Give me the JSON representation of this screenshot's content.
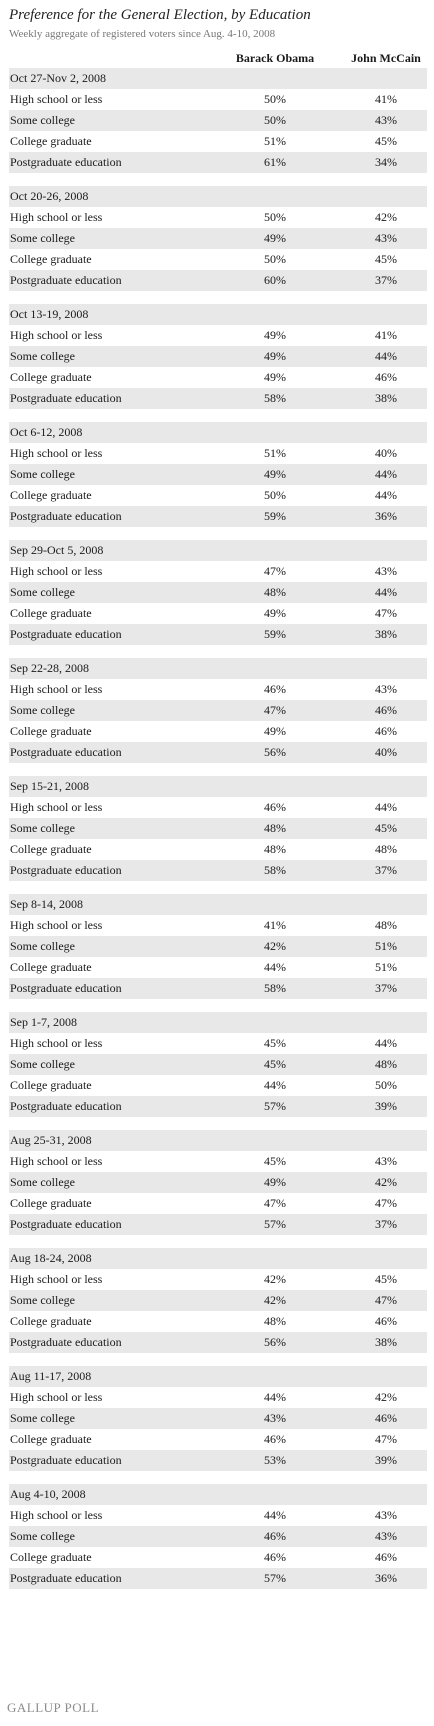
{
  "title": "Preference for the General Election, by Education",
  "subtitle": "Weekly aggregate of registered voters since Aug. 4-10, 2008",
  "logo": "GALLUP POLL",
  "chart_data": {
    "type": "table",
    "columns": [
      "Barack Obama",
      "John McCain"
    ],
    "groups": [
      {
        "period": "Oct 27-Nov 2, 2008",
        "rows": [
          {
            "label": "High school or less",
            "obama": "50%",
            "mccain": "41%"
          },
          {
            "label": "Some college",
            "obama": "50%",
            "mccain": "43%"
          },
          {
            "label": "College graduate",
            "obama": "51%",
            "mccain": "45%"
          },
          {
            "label": "Postgraduate education",
            "obama": "61%",
            "mccain": "34%"
          }
        ]
      },
      {
        "period": "Oct 20-26, 2008",
        "rows": [
          {
            "label": "High school or less",
            "obama": "50%",
            "mccain": "42%"
          },
          {
            "label": "Some college",
            "obama": "49%",
            "mccain": "43%"
          },
          {
            "label": "College graduate",
            "obama": "50%",
            "mccain": "45%"
          },
          {
            "label": "Postgraduate education",
            "obama": "60%",
            "mccain": "37%"
          }
        ]
      },
      {
        "period": "Oct 13-19, 2008",
        "rows": [
          {
            "label": "High school or less",
            "obama": "49%",
            "mccain": "41%"
          },
          {
            "label": "Some college",
            "obama": "49%",
            "mccain": "44%"
          },
          {
            "label": "College graduate",
            "obama": "49%",
            "mccain": "46%"
          },
          {
            "label": "Postgraduate education",
            "obama": "58%",
            "mccain": "38%"
          }
        ]
      },
      {
        "period": "Oct 6-12, 2008",
        "rows": [
          {
            "label": "High school or less",
            "obama": "51%",
            "mccain": "40%"
          },
          {
            "label": "Some college",
            "obama": "49%",
            "mccain": "44%"
          },
          {
            "label": "College graduate",
            "obama": "50%",
            "mccain": "44%"
          },
          {
            "label": "Postgraduate education",
            "obama": "59%",
            "mccain": "36%"
          }
        ]
      },
      {
        "period": "Sep 29-Oct 5, 2008",
        "rows": [
          {
            "label": "High school or less",
            "obama": "47%",
            "mccain": "43%"
          },
          {
            "label": "Some college",
            "obama": "48%",
            "mccain": "44%"
          },
          {
            "label": "College graduate",
            "obama": "49%",
            "mccain": "47%"
          },
          {
            "label": "Postgraduate education",
            "obama": "59%",
            "mccain": "38%"
          }
        ]
      },
      {
        "period": "Sep 22-28, 2008",
        "rows": [
          {
            "label": "High school or less",
            "obama": "46%",
            "mccain": "43%"
          },
          {
            "label": "Some college",
            "obama": "47%",
            "mccain": "46%"
          },
          {
            "label": "College graduate",
            "obama": "49%",
            "mccain": "46%"
          },
          {
            "label": "Postgraduate education",
            "obama": "56%",
            "mccain": "40%"
          }
        ]
      },
      {
        "period": "Sep 15-21, 2008",
        "rows": [
          {
            "label": "High school or less",
            "obama": "46%",
            "mccain": "44%"
          },
          {
            "label": "Some college",
            "obama": "48%",
            "mccain": "45%"
          },
          {
            "label": "College graduate",
            "obama": "48%",
            "mccain": "48%"
          },
          {
            "label": "Postgraduate education",
            "obama": "58%",
            "mccain": "37%"
          }
        ]
      },
      {
        "period": "Sep 8-14, 2008",
        "rows": [
          {
            "label": "High school or less",
            "obama": "41%",
            "mccain": "48%"
          },
          {
            "label": "Some college",
            "obama": "42%",
            "mccain": "51%"
          },
          {
            "label": "College graduate",
            "obama": "44%",
            "mccain": "51%"
          },
          {
            "label": "Postgraduate education",
            "obama": "58%",
            "mccain": "37%"
          }
        ]
      },
      {
        "period": "Sep 1-7, 2008",
        "rows": [
          {
            "label": "High school or less",
            "obama": "45%",
            "mccain": "44%"
          },
          {
            "label": "Some college",
            "obama": "45%",
            "mccain": "48%"
          },
          {
            "label": "College graduate",
            "obama": "44%",
            "mccain": "50%"
          },
          {
            "label": "Postgraduate education",
            "obama": "57%",
            "mccain": "39%"
          }
        ]
      },
      {
        "period": "Aug 25-31, 2008",
        "rows": [
          {
            "label": "High school or less",
            "obama": "45%",
            "mccain": "43%"
          },
          {
            "label": "Some college",
            "obama": "49%",
            "mccain": "42%"
          },
          {
            "label": "College graduate",
            "obama": "47%",
            "mccain": "47%"
          },
          {
            "label": "Postgraduate education",
            "obama": "57%",
            "mccain": "37%"
          }
        ]
      },
      {
        "period": "Aug 18-24, 2008",
        "rows": [
          {
            "label": "High school or less",
            "obama": "42%",
            "mccain": "45%"
          },
          {
            "label": "Some college",
            "obama": "42%",
            "mccain": "47%"
          },
          {
            "label": "College graduate",
            "obama": "48%",
            "mccain": "46%"
          },
          {
            "label": "Postgraduate education",
            "obama": "56%",
            "mccain": "38%"
          }
        ]
      },
      {
        "period": "Aug 11-17, 2008",
        "rows": [
          {
            "label": "High school or less",
            "obama": "44%",
            "mccain": "42%"
          },
          {
            "label": "Some college",
            "obama": "43%",
            "mccain": "46%"
          },
          {
            "label": "College graduate",
            "obama": "46%",
            "mccain": "47%"
          },
          {
            "label": "Postgraduate education",
            "obama": "53%",
            "mccain": "39%"
          }
        ]
      },
      {
        "period": "Aug 4-10, 2008",
        "rows": [
          {
            "label": "High school or less",
            "obama": "44%",
            "mccain": "43%"
          },
          {
            "label": "Some college",
            "obama": "46%",
            "mccain": "43%"
          },
          {
            "label": "College graduate",
            "obama": "46%",
            "mccain": "46%"
          },
          {
            "label": "Postgraduate education",
            "obama": "57%",
            "mccain": "36%"
          }
        ]
      }
    ]
  }
}
